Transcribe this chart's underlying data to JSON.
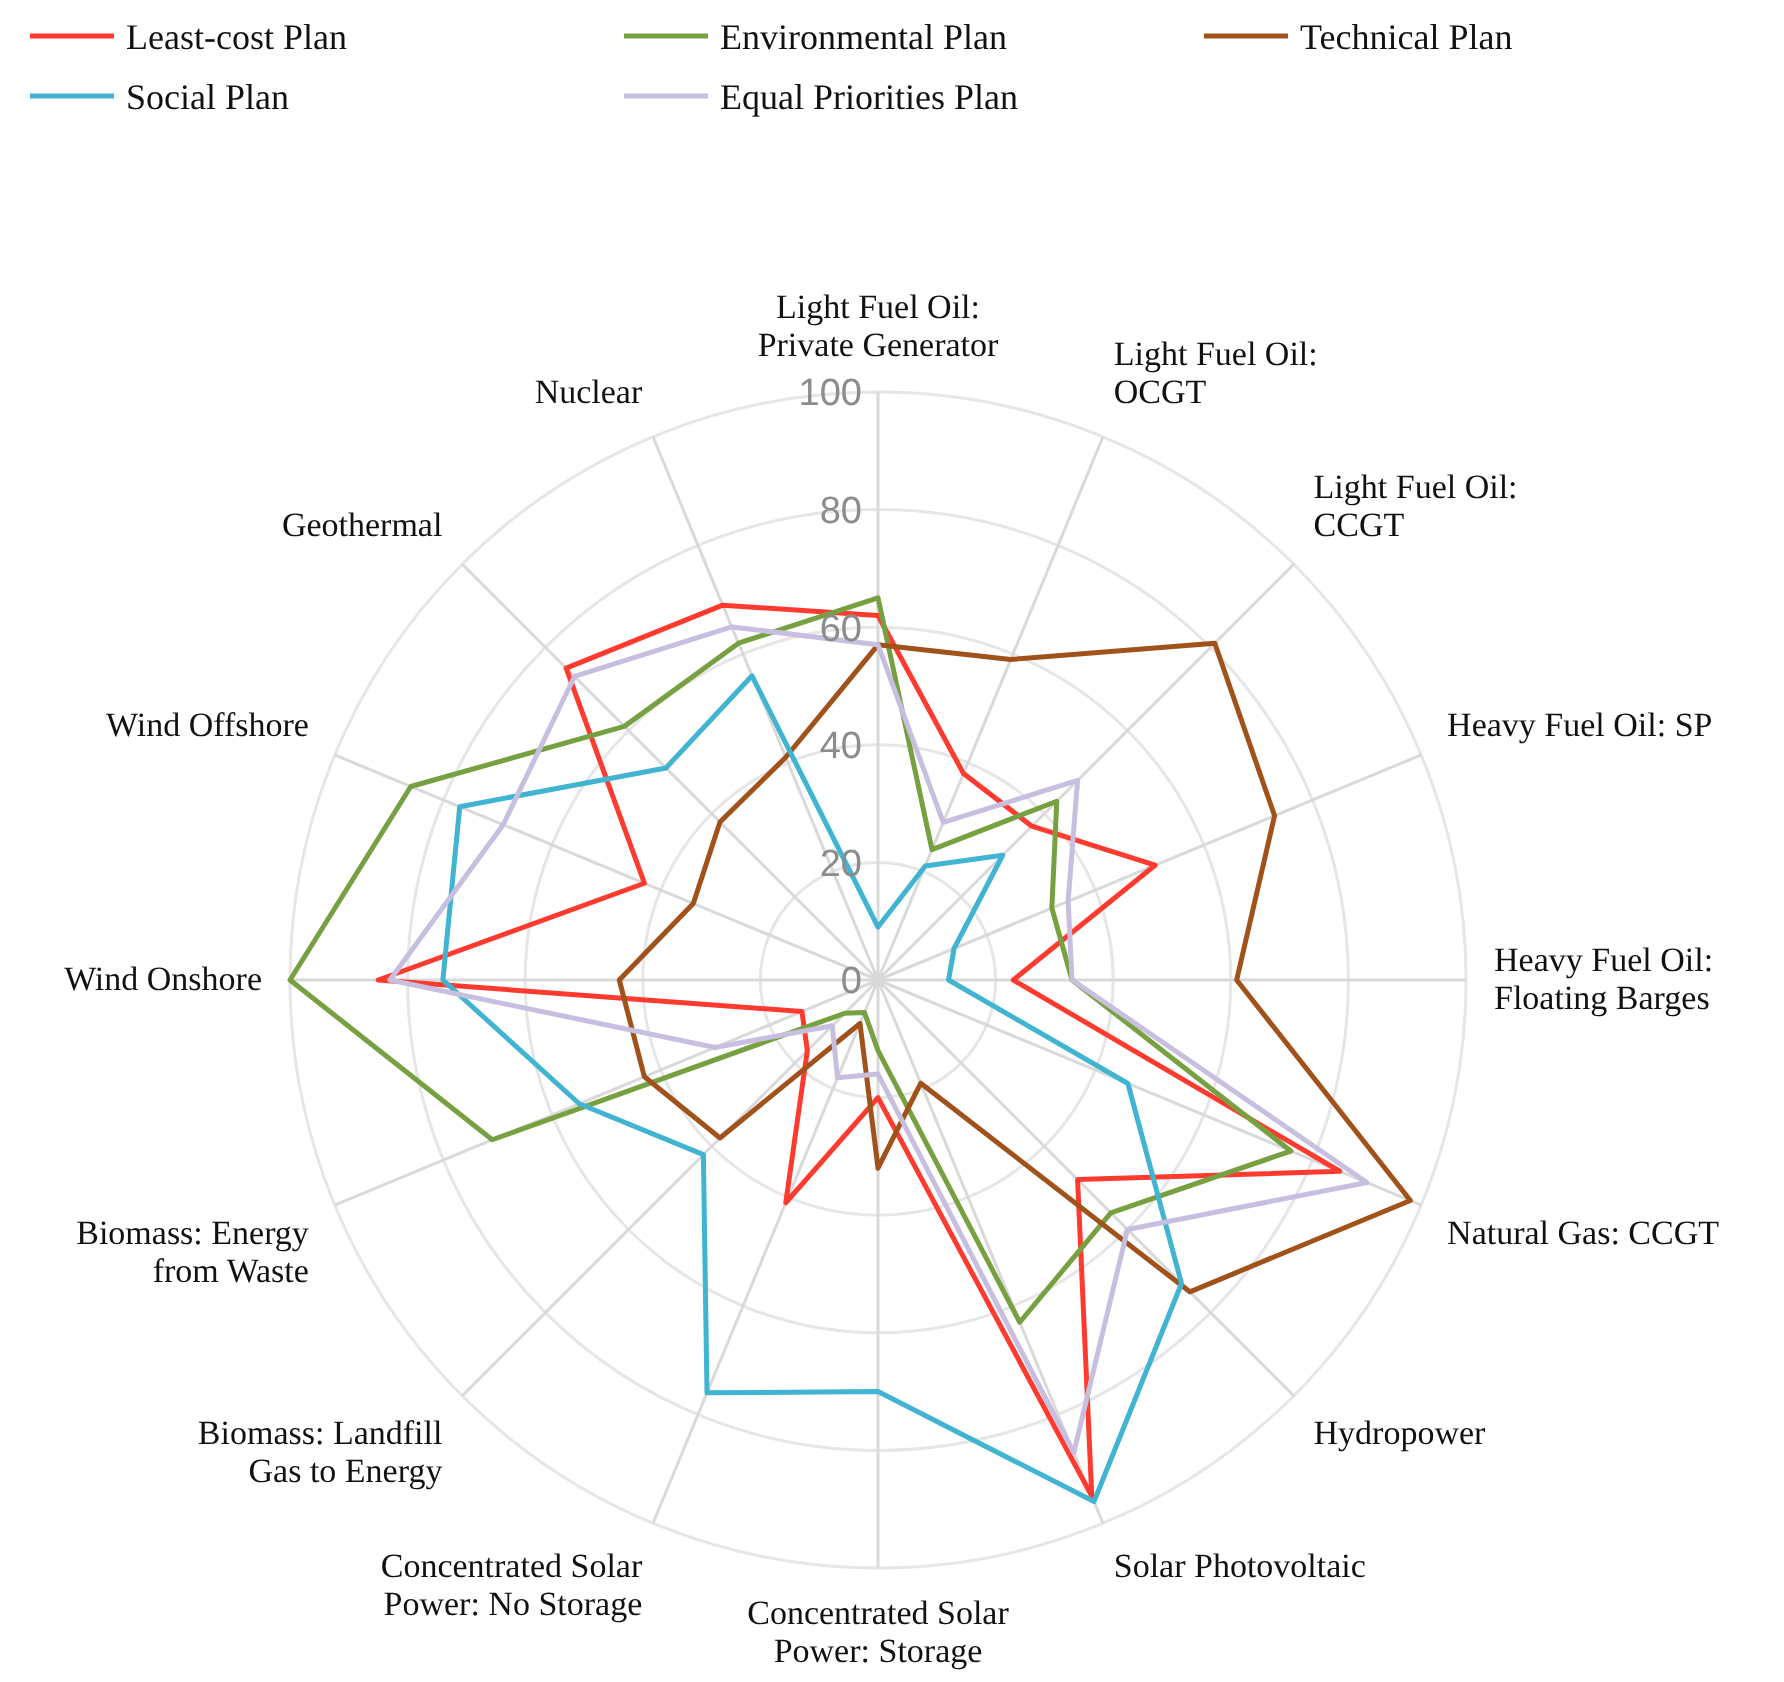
{
  "chart_data": {
    "type": "radar",
    "categories": [
      "Light Fuel Oil: Private Generator",
      "Light Fuel Oil: OCGT",
      "Light Fuel Oil: CCGT",
      "Heavy Fuel Oil: SP",
      "Heavy Fuel Oil: Floating Barges",
      "Natural Gas: CCGT",
      "Hydropower",
      "Solar Photovoltaic",
      "Concentrated Solar Power: Storage",
      "Concentrated Solar Power: No Storage",
      "Biomass: Landfill Gas to Energy",
      "Biomass: Energy from Waste",
      "Wind Onshore",
      "Wind Offshore",
      "Geothermal",
      "Nuclear"
    ],
    "series": [
      {
        "name": "Least-cost Plan",
        "color": "#ff3b2f",
        "values": [
          62,
          38,
          37,
          51,
          23,
          85,
          48,
          95,
          20,
          41,
          17,
          14,
          85,
          43,
          75,
          69
        ]
      },
      {
        "name": "Environmental Plan",
        "color": "#77a040",
        "values": [
          65,
          24,
          43,
          32,
          33,
          76,
          56,
          63,
          12,
          6,
          8,
          71,
          100,
          86,
          61,
          62
        ]
      },
      {
        "name": "Technical Plan",
        "color": "#a0521a",
        "values": [
          57,
          59,
          81,
          73,
          61,
          98,
          75,
          19,
          32,
          8,
          38,
          43,
          44,
          34,
          38,
          41
        ]
      },
      {
        "name": "Social Plan",
        "color": "#40b4d0",
        "values": [
          9,
          21,
          30,
          14,
          12,
          46,
          73,
          96,
          70,
          76,
          42,
          55,
          74,
          77,
          51,
          56
        ]
      },
      {
        "name": "Equal Priorities Plan",
        "color": "#c8bfe0",
        "values": [
          57,
          29,
          48,
          35,
          33,
          90,
          60,
          87,
          16,
          18,
          11,
          30,
          83,
          69,
          73,
          65
        ]
      }
    ],
    "ylim": [
      0,
      100
    ],
    "yticks": [
      0,
      20,
      40,
      60,
      80,
      100
    ],
    "grid": true,
    "legend": "top",
    "marker": "none",
    "line_style": "solid"
  }
}
